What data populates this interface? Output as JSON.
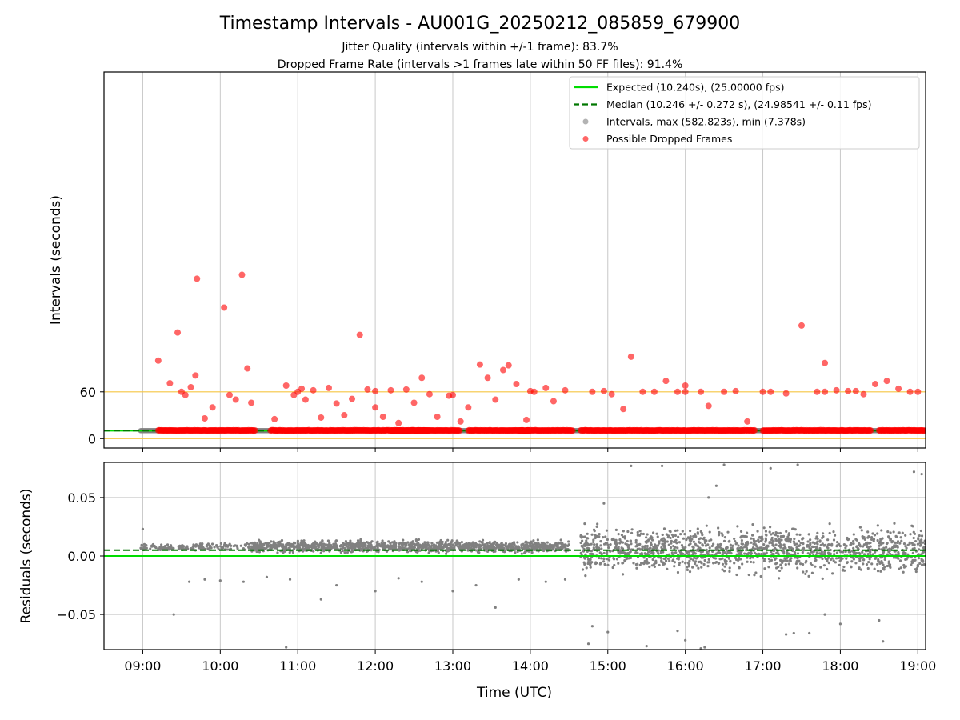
{
  "title": "Timestamp Intervals - AU001G_20250212_085859_679900",
  "subtitle_1": "Jitter Quality (intervals within +/-1 frame): 83.7%",
  "subtitle_2": "Dropped Frame Rate (intervals >1 frames late within 50 FF files): 91.4%",
  "colors": {
    "expected": "#00dd00",
    "median": "#007700",
    "interval_points": "#808080",
    "dropped_points": "#ff0000",
    "threshold_lines": "#f5c542",
    "grid": "#c8c8c8"
  },
  "chart_data": [
    {
      "type": "scatter",
      "panel": "top",
      "ylabel": "Intervals (seconds)",
      "xlim_hours": [
        8.5,
        19.1
      ],
      "ylim": [
        -12,
        470
      ],
      "yticks": [
        {
          "value": 0,
          "label": "0"
        },
        {
          "value": 60,
          "label": "60"
        }
      ],
      "xticks": [
        {
          "value": 9,
          "label": "09:00"
        },
        {
          "value": 10,
          "label": "10:00"
        },
        {
          "value": 11,
          "label": "11:00"
        },
        {
          "value": 12,
          "label": "12:00"
        },
        {
          "value": 13,
          "label": "13:00"
        },
        {
          "value": 14,
          "label": "14:00"
        },
        {
          "value": 15,
          "label": "15:00"
        },
        {
          "value": 16,
          "label": "16:00"
        },
        {
          "value": 17,
          "label": "17:00"
        },
        {
          "value": 18,
          "label": "18:00"
        },
        {
          "value": 19,
          "label": "19:00"
        }
      ],
      "grid": "vertical",
      "threshold_lines": [
        0,
        60
      ],
      "expected_value": 10.24,
      "median_value": 10.246,
      "legend_position": "top-right",
      "legend": [
        {
          "label": "Expected (10.240s), (25.00000 fps)",
          "kind": "solid-line",
          "color": "#00dd00"
        },
        {
          "label": "Median (10.246 +/- 0.272 s), (24.98541 +/- 0.11 fps)",
          "kind": "dashed-line",
          "color": "#007700"
        },
        {
          "label": "Intervals, max (582.823s), min (7.378s)",
          "kind": "dot",
          "color": "#808080"
        },
        {
          "label": "Possible Dropped Frames",
          "kind": "dot",
          "color": "#ff0000"
        }
      ],
      "dropped_frames": [
        [
          9.2,
          100
        ],
        [
          9.35,
          71
        ],
        [
          9.45,
          136
        ],
        [
          9.55,
          56
        ],
        [
          9.62,
          66
        ],
        [
          9.68,
          81
        ],
        [
          9.7,
          205
        ],
        [
          9.8,
          26
        ],
        [
          9.9,
          40
        ],
        [
          10.05,
          168
        ],
        [
          10.12,
          56
        ],
        [
          10.2,
          50
        ],
        [
          10.28,
          210
        ],
        [
          10.35,
          90
        ],
        [
          10.4,
          46
        ],
        [
          10.7,
          25
        ],
        [
          10.85,
          68
        ],
        [
          10.95,
          56
        ],
        [
          11.05,
          64
        ],
        [
          11.1,
          50
        ],
        [
          11.2,
          62
        ],
        [
          11.3,
          27
        ],
        [
          11.4,
          65
        ],
        [
          11.5,
          45
        ],
        [
          11.6,
          30
        ],
        [
          11.7,
          51
        ],
        [
          11.8,
          133
        ],
        [
          11.9,
          63
        ],
        [
          12.0,
          40
        ],
        [
          12.1,
          28
        ],
        [
          12.2,
          62
        ],
        [
          12.3,
          20
        ],
        [
          12.4,
          63
        ],
        [
          12.5,
          46
        ],
        [
          12.6,
          78
        ],
        [
          12.7,
          57
        ],
        [
          12.8,
          28
        ],
        [
          12.95,
          55
        ],
        [
          13.1,
          22
        ],
        [
          13.2,
          40
        ],
        [
          13.35,
          95
        ],
        [
          13.45,
          78
        ],
        [
          13.55,
          50
        ],
        [
          13.65,
          88
        ],
        [
          13.72,
          94
        ],
        [
          13.82,
          70
        ],
        [
          13.95,
          24
        ],
        [
          14.05,
          60
        ],
        [
          14.2,
          65
        ],
        [
          14.3,
          48
        ],
        [
          14.45,
          62
        ],
        [
          14.8,
          60
        ],
        [
          14.95,
          61
        ],
        [
          15.05,
          57
        ],
        [
          15.2,
          38
        ],
        [
          15.3,
          105
        ],
        [
          15.45,
          60
        ],
        [
          15.6,
          60
        ],
        [
          15.75,
          74
        ],
        [
          15.9,
          60
        ],
        [
          16.0,
          68
        ],
        [
          16.2,
          60
        ],
        [
          16.3,
          42
        ],
        [
          16.5,
          60
        ],
        [
          16.65,
          61
        ],
        [
          16.8,
          22
        ],
        [
          17.0,
          60
        ],
        [
          17.1,
          60
        ],
        [
          17.3,
          58
        ],
        [
          17.5,
          145
        ],
        [
          17.7,
          60
        ],
        [
          17.8,
          97
        ],
        [
          17.95,
          62
        ],
        [
          18.1,
          61
        ],
        [
          18.3,
          57
        ],
        [
          18.45,
          70
        ],
        [
          18.6,
          74
        ],
        [
          18.75,
          64
        ],
        [
          18.9,
          60
        ],
        [
          19.0,
          60
        ],
        [
          9.5,
          60
        ],
        [
          11.0,
          60
        ],
        [
          12.0,
          61
        ],
        [
          13.0,
          56
        ],
        [
          14.0,
          61
        ],
        [
          16.0,
          60
        ],
        [
          17.8,
          60
        ],
        [
          18.2,
          61
        ]
      ],
      "dropped_band": {
        "y": 10.5,
        "x_ranges": [
          [
            9.2,
            10.45
          ],
          [
            10.65,
            12.7
          ],
          [
            12.2,
            13.1
          ],
          [
            13.2,
            14.0
          ],
          [
            13.85,
            14.55
          ],
          [
            14.65,
            16.9
          ],
          [
            17.0,
            18.4
          ],
          [
            18.5,
            19.1
          ]
        ]
      },
      "interval_band": {
        "y": 10.24,
        "x_ranges": [
          [
            8.97,
            19.1
          ]
        ]
      }
    },
    {
      "type": "scatter",
      "panel": "bottom",
      "xlabel": "Time (UTC)",
      "ylabel": "Residuals (seconds)",
      "xlim_hours": [
        8.5,
        19.1
      ],
      "ylim": [
        -0.08,
        0.08
      ],
      "yticks": [
        {
          "value": -0.05,
          "label": "−0.05"
        },
        {
          "value": 0.0,
          "label": "0.00"
        },
        {
          "value": 0.05,
          "label": "0.05"
        }
      ],
      "grid": "both",
      "expected_residual": 0.0,
      "median_residual": 0.005,
      "segments": [
        {
          "from": 8.97,
          "to": 9.6,
          "center": 0.007,
          "spread": 0.004,
          "count": 90
        },
        {
          "from": 9.6,
          "to": 10.5,
          "center": 0.008,
          "spread": 0.005,
          "count": 90
        },
        {
          "from": 10.4,
          "to": 14.5,
          "center": 0.008,
          "spread": 0.007,
          "count": 1200
        },
        {
          "from": 14.65,
          "to": 19.1,
          "center": 0.005,
          "spread": 0.026,
          "count": 1400
        }
      ],
      "outliers": [
        [
          9.0,
          0.023
        ],
        [
          9.4,
          -0.05
        ],
        [
          9.6,
          -0.022
        ],
        [
          9.8,
          -0.02
        ],
        [
          10.0,
          -0.021
        ],
        [
          10.3,
          -0.022
        ],
        [
          10.6,
          -0.018
        ],
        [
          10.9,
          -0.02
        ],
        [
          10.85,
          -0.078
        ],
        [
          11.3,
          -0.037
        ],
        [
          11.5,
          -0.025
        ],
        [
          12.0,
          -0.03
        ],
        [
          12.3,
          -0.019
        ],
        [
          12.6,
          -0.022
        ],
        [
          13.0,
          -0.03
        ],
        [
          13.3,
          -0.025
        ],
        [
          13.55,
          -0.044
        ],
        [
          13.85,
          -0.02
        ],
        [
          14.2,
          -0.022
        ],
        [
          14.45,
          -0.02
        ],
        [
          14.8,
          -0.06
        ],
        [
          14.75,
          -0.075
        ],
        [
          14.95,
          0.045
        ],
        [
          15.5,
          -0.077
        ],
        [
          16.0,
          -0.072
        ],
        [
          16.25,
          -0.078
        ],
        [
          16.5,
          0.078
        ],
        [
          17.3,
          -0.067
        ],
        [
          17.4,
          -0.066
        ],
        [
          18.5,
          -0.055
        ],
        [
          18.55,
          -0.073
        ],
        [
          18.95,
          0.072
        ],
        [
          19.05,
          0.07
        ],
        [
          15.3,
          0.077
        ],
        [
          15.7,
          0.077
        ],
        [
          16.2,
          -0.079
        ],
        [
          17.1,
          0.075
        ],
        [
          17.8,
          -0.05
        ],
        [
          16.4,
          0.06
        ],
        [
          16.3,
          0.05
        ],
        [
          15.0,
          -0.065
        ],
        [
          17.45,
          0.078
        ],
        [
          17.6,
          -0.066
        ],
        [
          18.0,
          -0.058
        ],
        [
          15.9,
          -0.064
        ]
      ]
    }
  ]
}
